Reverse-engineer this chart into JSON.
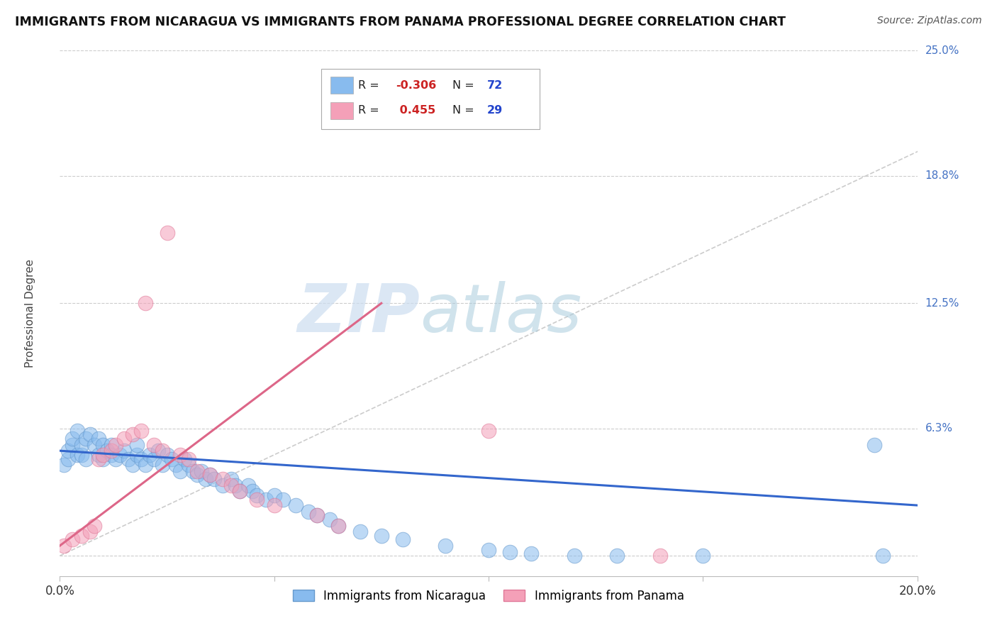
{
  "title": "IMMIGRANTS FROM NICARAGUA VS IMMIGRANTS FROM PANAMA PROFESSIONAL DEGREE CORRELATION CHART",
  "source": "Source: ZipAtlas.com",
  "ylabel": "Professional Degree",
  "xlim": [
    0.0,
    0.2
  ],
  "ylim": [
    -0.01,
    0.25
  ],
  "ytick_vals": [
    0.0,
    0.063,
    0.125,
    0.188,
    0.25
  ],
  "ytick_labels": [
    "",
    "6.3%",
    "12.5%",
    "18.8%",
    "25.0%"
  ],
  "legend_labels_bottom": [
    "Immigrants from Nicaragua",
    "Immigrants from Panama"
  ],
  "nicaragua_color": "#88bbee",
  "panama_color": "#f4a0b8",
  "nicaragua_edge": "#6699cc",
  "panama_edge": "#e07898",
  "nicaragua_trendline_color": "#3366cc",
  "panama_trendline_color": "#dd6688",
  "diagonal_color": "#cccccc",
  "watermark_zip": "ZIP",
  "watermark_atlas": "atlas",
  "watermark_color_zip": "#ccddf0",
  "watermark_color_atlas": "#aaccdd",
  "R_nicaragua": -0.306,
  "N_nicaragua": 72,
  "R_panama": 0.455,
  "N_panama": 29,
  "nic_x": [
    0.001,
    0.002,
    0.002,
    0.003,
    0.003,
    0.004,
    0.004,
    0.005,
    0.005,
    0.006,
    0.006,
    0.007,
    0.008,
    0.009,
    0.009,
    0.01,
    0.01,
    0.011,
    0.012,
    0.012,
    0.013,
    0.014,
    0.015,
    0.016,
    0.017,
    0.018,
    0.018,
    0.019,
    0.02,
    0.021,
    0.022,
    0.023,
    0.024,
    0.025,
    0.026,
    0.027,
    0.028,
    0.029,
    0.03,
    0.031,
    0.032,
    0.033,
    0.034,
    0.035,
    0.036,
    0.038,
    0.04,
    0.041,
    0.042,
    0.044,
    0.045,
    0.046,
    0.048,
    0.05,
    0.052,
    0.055,
    0.058,
    0.06,
    0.063,
    0.065,
    0.07,
    0.075,
    0.08,
    0.09,
    0.1,
    0.105,
    0.11,
    0.12,
    0.13,
    0.15,
    0.19,
    0.192
  ],
  "nic_y": [
    0.045,
    0.048,
    0.052,
    0.055,
    0.058,
    0.05,
    0.062,
    0.05,
    0.055,
    0.048,
    0.058,
    0.06,
    0.055,
    0.05,
    0.058,
    0.048,
    0.055,
    0.052,
    0.05,
    0.055,
    0.048,
    0.05,
    0.052,
    0.048,
    0.045,
    0.05,
    0.055,
    0.048,
    0.045,
    0.05,
    0.048,
    0.052,
    0.045,
    0.05,
    0.048,
    0.045,
    0.042,
    0.048,
    0.045,
    0.042,
    0.04,
    0.042,
    0.038,
    0.04,
    0.038,
    0.035,
    0.038,
    0.035,
    0.032,
    0.035,
    0.032,
    0.03,
    0.028,
    0.03,
    0.028,
    0.025,
    0.022,
    0.02,
    0.018,
    0.015,
    0.012,
    0.01,
    0.008,
    0.005,
    0.003,
    0.002,
    0.001,
    0.0,
    0.0,
    0.0,
    0.055,
    0.0
  ],
  "pan_x": [
    0.001,
    0.003,
    0.005,
    0.007,
    0.008,
    0.009,
    0.01,
    0.012,
    0.013,
    0.015,
    0.017,
    0.019,
    0.02,
    0.022,
    0.024,
    0.025,
    0.028,
    0.03,
    0.032,
    0.035,
    0.038,
    0.04,
    0.042,
    0.046,
    0.05,
    0.06,
    0.065,
    0.1,
    0.14
  ],
  "pan_y": [
    0.005,
    0.008,
    0.01,
    0.012,
    0.015,
    0.048,
    0.05,
    0.052,
    0.055,
    0.058,
    0.06,
    0.062,
    0.125,
    0.055,
    0.052,
    0.16,
    0.05,
    0.048,
    0.042,
    0.04,
    0.038,
    0.035,
    0.032,
    0.028,
    0.025,
    0.02,
    0.015,
    0.062,
    0.0
  ],
  "nic_trend_x0": 0.0,
  "nic_trend_x1": 0.2,
  "nic_trend_y0": 0.052,
  "nic_trend_y1": 0.025,
  "pan_trend_x0": 0.0,
  "pan_trend_x1": 0.075,
  "pan_trend_y0": 0.005,
  "pan_trend_y1": 0.125
}
